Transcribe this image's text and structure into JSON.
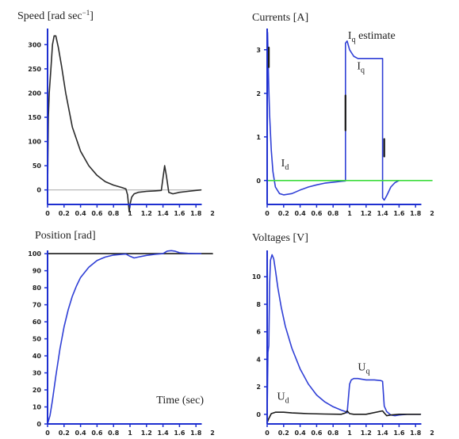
{
  "chart_data": [
    {
      "type": "line",
      "title": "Speed [rad sec",
      "title_sup": "−1",
      "title_end": "]",
      "xlim": [
        0,
        2
      ],
      "ylim": [
        -30,
        330
      ],
      "xticks": [
        "0",
        "0.2",
        "0.4",
        "0.6",
        "0.8",
        "1",
        "1.2",
        "1.4",
        "1.6",
        "1.8",
        "2"
      ],
      "yticks": [
        {
          "v": 0,
          "label": "0"
        },
        {
          "v": 50,
          "label": "50"
        },
        {
          "v": 100,
          "label": "100"
        },
        {
          "v": 150,
          "label": "150"
        },
        {
          "v": 200,
          "label": "200"
        },
        {
          "v": 250,
          "label": "250"
        },
        {
          "v": 300,
          "label": "300"
        }
      ],
      "reference_line": {
        "y": 0,
        "color": "#b0b0b0"
      },
      "series": [
        {
          "color": "#2b2b2b",
          "x": [
            0,
            0.01,
            0.02,
            0.04,
            0.06,
            0.08,
            0.1,
            0.13,
            0.17,
            0.22,
            0.3,
            0.4,
            0.5,
            0.6,
            0.7,
            0.8,
            0.9,
            0.95,
            0.97,
            0.99,
            1.0,
            1.02,
            1.05,
            1.1,
            1.2,
            1.3,
            1.38,
            1.4,
            1.42,
            1.44,
            1.47,
            1.52,
            1.6,
            1.7,
            1.8,
            1.86
          ],
          "y": [
            0,
            150,
            200,
            250,
            300,
            318,
            318,
            295,
            255,
            200,
            130,
            80,
            50,
            30,
            17,
            10,
            5,
            2,
            -10,
            -45,
            -30,
            -15,
            -8,
            -5,
            -3,
            -2,
            -1,
            25,
            50,
            30,
            -5,
            -8,
            -5,
            -3,
            -1,
            0
          ]
        }
      ]
    },
    {
      "type": "line",
      "title": "Currents [A]",
      "xlim": [
        0,
        2
      ],
      "ylim": [
        -0.55,
        3.45
      ],
      "xticks": [
        "0",
        "0.2",
        "0.4",
        "0.6",
        "0.8",
        "1",
        "1.2",
        "1.4",
        "1.6",
        "1.8",
        "2"
      ],
      "yticks": [
        {
          "v": 0,
          "label": "0"
        },
        {
          "v": 1,
          "label": "1"
        },
        {
          "v": 2,
          "label": "2"
        },
        {
          "v": 3,
          "label": "3"
        }
      ],
      "annotations": [
        {
          "text": "I",
          "sub": "q",
          "tail": " estimate",
          "x": 0.98,
          "y": 3.25
        },
        {
          "text": "I",
          "sub": "q",
          "tail": "",
          "x": 1.09,
          "y": 2.55
        },
        {
          "text": "I",
          "sub": "d",
          "tail": "",
          "x": 0.17,
          "y": 0.32
        }
      ],
      "series": [
        {
          "name": "I_q",
          "color": "#2f3fd6",
          "x": [
            0,
            0.005,
            0.01,
            0.02,
            0.03,
            0.05,
            0.07,
            0.1,
            0.15,
            0.2,
            0.3,
            0.4,
            0.5,
            0.6,
            0.7,
            0.8,
            0.9,
            0.95,
            0.95,
            0.97,
            1.0,
            1.05,
            1.1,
            1.2,
            1.3,
            1.4,
            1.4,
            1.42,
            1.45,
            1.5,
            1.55,
            1.6
          ],
          "y": [
            0,
            3.4,
            3.0,
            2.1,
            1.5,
            0.7,
            0.2,
            -0.15,
            -0.3,
            -0.33,
            -0.3,
            -0.22,
            -0.15,
            -0.1,
            -0.06,
            -0.04,
            -0.02,
            -0.01,
            3.15,
            3.2,
            3.0,
            2.85,
            2.8,
            2.8,
            2.8,
            2.8,
            -0.4,
            -0.45,
            -0.35,
            -0.15,
            -0.05,
            0
          ]
        },
        {
          "name": "I_q estimate",
          "color": "#1a1a1a",
          "x": [
            0.02,
            0.02,
            0.95,
            0.95,
            1.42,
            1.42
          ],
          "y": [
            2.6,
            3.05,
            1.15,
            1.95,
            0.55,
            0.95
          ]
        },
        {
          "name": "I_d",
          "color": "#3ddc3d",
          "x": [
            0,
            2
          ],
          "y": [
            0,
            0
          ]
        }
      ]
    },
    {
      "type": "line",
      "title": "Position [rad]",
      "xlim": [
        0,
        2
      ],
      "ylim": [
        0,
        101
      ],
      "xticks": [
        "0",
        "0.2",
        "0.4",
        "0.6",
        "0.8",
        "1",
        "1.2",
        "1.4",
        "1.6",
        "1.8",
        "2"
      ],
      "yticks": [
        {
          "v": 0,
          "label": "0"
        },
        {
          "v": 10,
          "label": "10"
        },
        {
          "v": 20,
          "label": "20"
        },
        {
          "v": 30,
          "label": "30"
        },
        {
          "v": 40,
          "label": "40"
        },
        {
          "v": 50,
          "label": "50"
        },
        {
          "v": 60,
          "label": "60"
        },
        {
          "v": 70,
          "label": "70"
        },
        {
          "v": 80,
          "label": "80"
        },
        {
          "v": 90,
          "label": "90"
        },
        {
          "v": 100,
          "label": "100"
        }
      ],
      "annotations": [
        {
          "text": "Time (sec)",
          "sub": "",
          "tail": "",
          "x": 1.32,
          "y": 12
        }
      ],
      "series": [
        {
          "name": "reference",
          "color": "#1a1a1a",
          "x": [
            0,
            2
          ],
          "y": [
            100,
            100
          ]
        },
        {
          "name": "position",
          "color": "#2f3fd6",
          "x": [
            0,
            0.03,
            0.06,
            0.1,
            0.15,
            0.2,
            0.25,
            0.3,
            0.35,
            0.4,
            0.5,
            0.6,
            0.7,
            0.8,
            0.9,
            0.95,
            1.0,
            1.05,
            1.1,
            1.2,
            1.3,
            1.4,
            1.45,
            1.5,
            1.55,
            1.6,
            1.7,
            1.8,
            1.86
          ],
          "y": [
            0,
            5,
            14,
            28,
            44,
            57,
            67,
            75,
            81,
            86,
            92,
            96,
            98,
            99.2,
            99.6,
            99.8,
            98.5,
            97.5,
            98,
            99,
            99.6,
            100,
            101.5,
            101.8,
            101.4,
            100.6,
            100.2,
            100,
            100
          ]
        }
      ]
    },
    {
      "type": "line",
      "title": "Voltages [V]",
      "xlim": [
        0,
        2
      ],
      "ylim": [
        -0.7,
        11.8
      ],
      "xticks": [
        "0",
        "0.2",
        "0.4",
        "0.6",
        "0.8",
        "1",
        "1.2",
        "1.4",
        "1.6",
        "1.8",
        "2"
      ],
      "yticks": [
        {
          "v": 0,
          "label": "0"
        },
        {
          "v": 2,
          "label": "2"
        },
        {
          "v": 4,
          "label": "4"
        },
        {
          "v": 6,
          "label": "6"
        },
        {
          "v": 8,
          "label": "8"
        },
        {
          "v": 10,
          "label": "10"
        }
      ],
      "annotations": [
        {
          "text": "U",
          "sub": "q",
          "tail": "",
          "x": 1.1,
          "y": 3.2
        },
        {
          "text": "U",
          "sub": "d",
          "tail": "",
          "x": 0.12,
          "y": 1.05
        }
      ],
      "series": [
        {
          "name": "U_q",
          "color": "#2f3fd6",
          "x": [
            0,
            0.01,
            0.02,
            0.03,
            0.04,
            0.06,
            0.08,
            0.1,
            0.13,
            0.17,
            0.22,
            0.3,
            0.4,
            0.5,
            0.6,
            0.7,
            0.8,
            0.9,
            0.95,
            0.97,
            1.0,
            1.02,
            1.05,
            1.1,
            1.2,
            1.3,
            1.38,
            1.4,
            1.42,
            1.45,
            1.5,
            1.55,
            1.6,
            1.7,
            1.8,
            1.86
          ],
          "y": [
            0,
            4.5,
            5.0,
            9.5,
            11.2,
            11.6,
            11.3,
            10.5,
            9.2,
            7.8,
            6.4,
            4.8,
            3.3,
            2.2,
            1.4,
            0.9,
            0.55,
            0.3,
            0.2,
            0.1,
            2.2,
            2.5,
            2.6,
            2.6,
            2.5,
            2.5,
            2.45,
            2.4,
            0.6,
            0.2,
            -0.05,
            -0.1,
            -0.05,
            0,
            0,
            0
          ]
        },
        {
          "name": "U_d",
          "color": "#1a1a1a",
          "x": [
            0,
            0.02,
            0.05,
            0.1,
            0.2,
            0.3,
            0.5,
            0.7,
            0.9,
            0.95,
            0.97,
            1.0,
            1.05,
            1.2,
            1.4,
            1.42,
            1.45,
            1.5,
            1.6,
            1.86
          ],
          "y": [
            -0.6,
            -0.3,
            0.05,
            0.15,
            0.15,
            0.1,
            0.05,
            0.02,
            0,
            0.1,
            0.25,
            0.05,
            0,
            0,
            0.25,
            0.1,
            -0.1,
            -0.05,
            0,
            0
          ]
        }
      ]
    }
  ]
}
